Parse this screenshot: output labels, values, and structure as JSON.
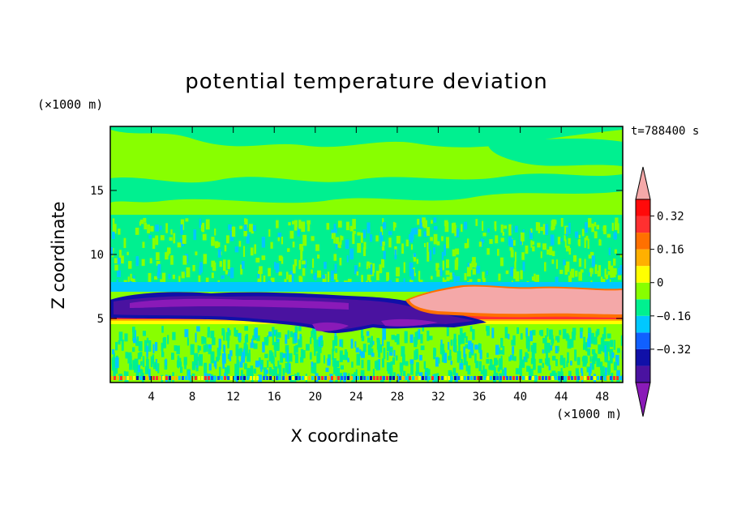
{
  "chart_data": {
    "type": "heatmap",
    "title": "potential temperature deviation",
    "xlabel": "X coordinate",
    "ylabel": "Z coordinate",
    "x_unit": "(×1000 m)",
    "y_unit": "(×1000 m)",
    "time_label": "t=788400 s",
    "xlim": [
      0,
      50
    ],
    "ylim": [
      0,
      20
    ],
    "x_ticks": [
      4,
      8,
      12,
      16,
      20,
      24,
      28,
      32,
      36,
      40,
      44,
      48
    ],
    "y_ticks": [
      5,
      10,
      15
    ],
    "colorbar": {
      "levels": [
        -0.48,
        -0.4,
        -0.32,
        -0.24,
        -0.16,
        -0.08,
        0,
        0.08,
        0.16,
        0.24,
        0.32,
        0.4
      ],
      "tick_values": [
        0.32,
        0.16,
        0,
        -0.16,
        -0.32
      ],
      "tick_labels": [
        "0.32",
        "0.16",
        "0",
        "−0.16",
        "−0.32"
      ],
      "colors": [
        "#8a1ab8",
        "#4a12a0",
        "#1010a8",
        "#1060ff",
        "#00c8ff",
        "#00f090",
        "#88ff00",
        "#ffff00",
        "#ffb000",
        "#ff7000",
        "#ff3030",
        "#ff0a0a",
        "#f4a8a8"
      ]
    },
    "features": [
      {
        "name": "upper layer",
        "z_range": [
          13,
          20
        ],
        "value_approx": 0.02
      },
      {
        "name": "mid noisy layer",
        "z_range": [
          8,
          13
        ],
        "value_approx": 0.0
      },
      {
        "name": "cold layer (west)",
        "x_range": [
          0,
          29
        ],
        "z_range": [
          5.2,
          6.8
        ],
        "value_approx": -0.4
      },
      {
        "name": "warm layer (east)",
        "x_range": [
          30,
          50
        ],
        "z_range": [
          5.5,
          7.2
        ],
        "value_approx": 0.44
      },
      {
        "name": "warm band",
        "x_range": [
          0,
          50
        ],
        "z_range": [
          4.6,
          5.3
        ],
        "value_approx": 0.3
      },
      {
        "name": "lower noisy layer",
        "z_range": [
          0.3,
          4.5
        ],
        "value_approx": 0.0
      }
    ]
  }
}
